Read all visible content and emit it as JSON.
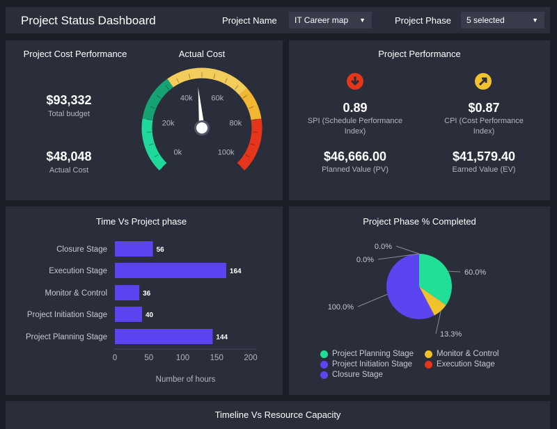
{
  "header": {
    "title": "Project Status Dashboard",
    "project_name_label": "Project Name",
    "project_name_value": "IT Career map",
    "project_phase_label": "Project Phase",
    "project_phase_value": "5 selected"
  },
  "cost": {
    "title": "Project Cost Performance",
    "gauge_title": "Actual Cost",
    "total_budget": "$93,332",
    "total_budget_label": "Total budget",
    "actual_cost": "$48,048",
    "actual_cost_label": "Actual Cost",
    "gauge": {
      "min": 0,
      "max": 100000,
      "value": 48048,
      "ticks": [
        "0k",
        "20k",
        "40k",
        "60k",
        "80k",
        "100k"
      ],
      "bands": [
        {
          "from": 0,
          "to": 20000,
          "color": "#1fd99a"
        },
        {
          "from": 20000,
          "to": 37000,
          "color": "#16a372"
        },
        {
          "from": 37000,
          "to": 68000,
          "color": "#f2cd5c"
        },
        {
          "from": 68000,
          "to": 80000,
          "color": "#f2b632"
        },
        {
          "from": 80000,
          "to": 100000,
          "color": "#e5361c"
        }
      ]
    }
  },
  "performance": {
    "title": "Project Performance",
    "spi": {
      "value": "0.89",
      "label": "SPI (Schedule Performance Index)",
      "icon_color": "#e5361c"
    },
    "cpi": {
      "value": "$0.87",
      "label": "CPI (Cost Performance Index)",
      "icon_color": "#f2c12e"
    },
    "pv": {
      "value": "$46,666.00",
      "label": "Planned Value (PV)"
    },
    "ev": {
      "value": "$41,579.40",
      "label": "Earned Value (EV)"
    }
  },
  "chart_data": [
    {
      "type": "bar",
      "orientation": "horizontal",
      "title": "Time Vs Project phase",
      "categories": [
        "Closure Stage",
        "Execution Stage",
        "Monitor & Control",
        "Project Initiation Stage",
        "Project Planning Stage"
      ],
      "values": [
        56,
        164,
        36,
        40,
        144
      ],
      "xlabel": "Number of hours",
      "xlim": [
        0,
        200
      ],
      "xticks": [
        "0",
        "50",
        "100",
        "150",
        "200"
      ],
      "color": "#5b45f0"
    },
    {
      "type": "pie",
      "title": "Project Phase % Completed",
      "slices": [
        {
          "name": "Project Planning Stage",
          "value": 60.0,
          "label": "60.0%",
          "color": "#1fe096"
        },
        {
          "name": "Monitor & Control",
          "value": 13.3,
          "label": "13.3%",
          "color": "#f2c12e"
        },
        {
          "name": "Project Initiation Stage",
          "value": 100.0,
          "label": "100.0%",
          "color": "#5b45f0"
        },
        {
          "name": "Closure Stage",
          "value": 0.0,
          "label": "0.0%",
          "color": "#5b45f0"
        },
        {
          "name": "Execution Stage",
          "value": 0.0,
          "label": "0.0%",
          "color": "#e5361c"
        }
      ],
      "legend": [
        "Project Planning Stage",
        "Monitor & Control",
        "Project Initiation Stage",
        "Execution Stage",
        "Closure Stage"
      ],
      "legend_position": "bottom"
    }
  ],
  "bottom": {
    "title": "Timeline Vs Resource Capacity"
  }
}
